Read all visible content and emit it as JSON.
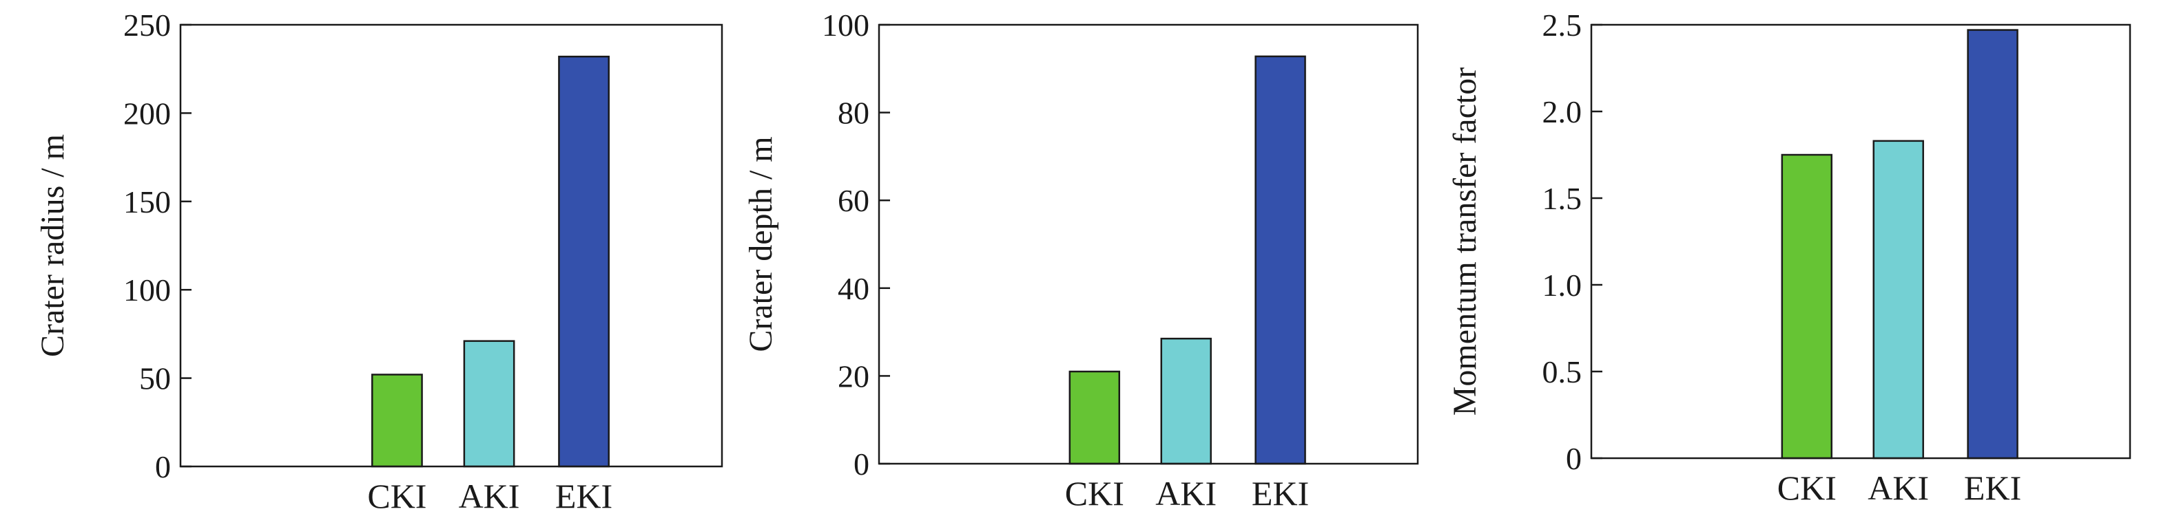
{
  "chart_data": [
    {
      "type": "bar",
      "categories": [
        "CKI",
        "AKI",
        "EKI"
      ],
      "values": [
        52,
        71,
        232
      ],
      "colors": [
        "#66c434",
        "#74d0d3",
        "#3451ac"
      ],
      "title": "",
      "xlabel": "",
      "ylabel": "Crater radius / m",
      "ylim": [
        0,
        250
      ],
      "yticks": [
        "0",
        "50",
        "100",
        "150",
        "200",
        "250"
      ],
      "grid": false,
      "legend": "none"
    },
    {
      "type": "bar",
      "categories": [
        "CKI",
        "AKI",
        "EKI"
      ],
      "values": [
        21,
        28.5,
        92.8
      ],
      "colors": [
        "#66c434",
        "#74d0d3",
        "#3451ac"
      ],
      "title": "",
      "xlabel": "",
      "ylabel": "Crater depth / m",
      "ylim": [
        0,
        100
      ],
      "yticks": [
        "0",
        "20",
        "40",
        "60",
        "80",
        "100"
      ],
      "grid": false,
      "legend": "none"
    },
    {
      "type": "bar",
      "categories": [
        "CKI",
        "AKI",
        "EKI"
      ],
      "values": [
        1.75,
        1.83,
        2.47
      ],
      "colors": [
        "#66c434",
        "#74d0d3",
        "#3451ac"
      ],
      "title": "",
      "xlabel": "",
      "ylabel": "Momentum transfer factor",
      "ylim": [
        0,
        2.5
      ],
      "yticks": [
        "0",
        "0.5",
        "1.0",
        "1.5",
        "2.0",
        "2.5"
      ],
      "grid": false,
      "legend": "none"
    }
  ]
}
